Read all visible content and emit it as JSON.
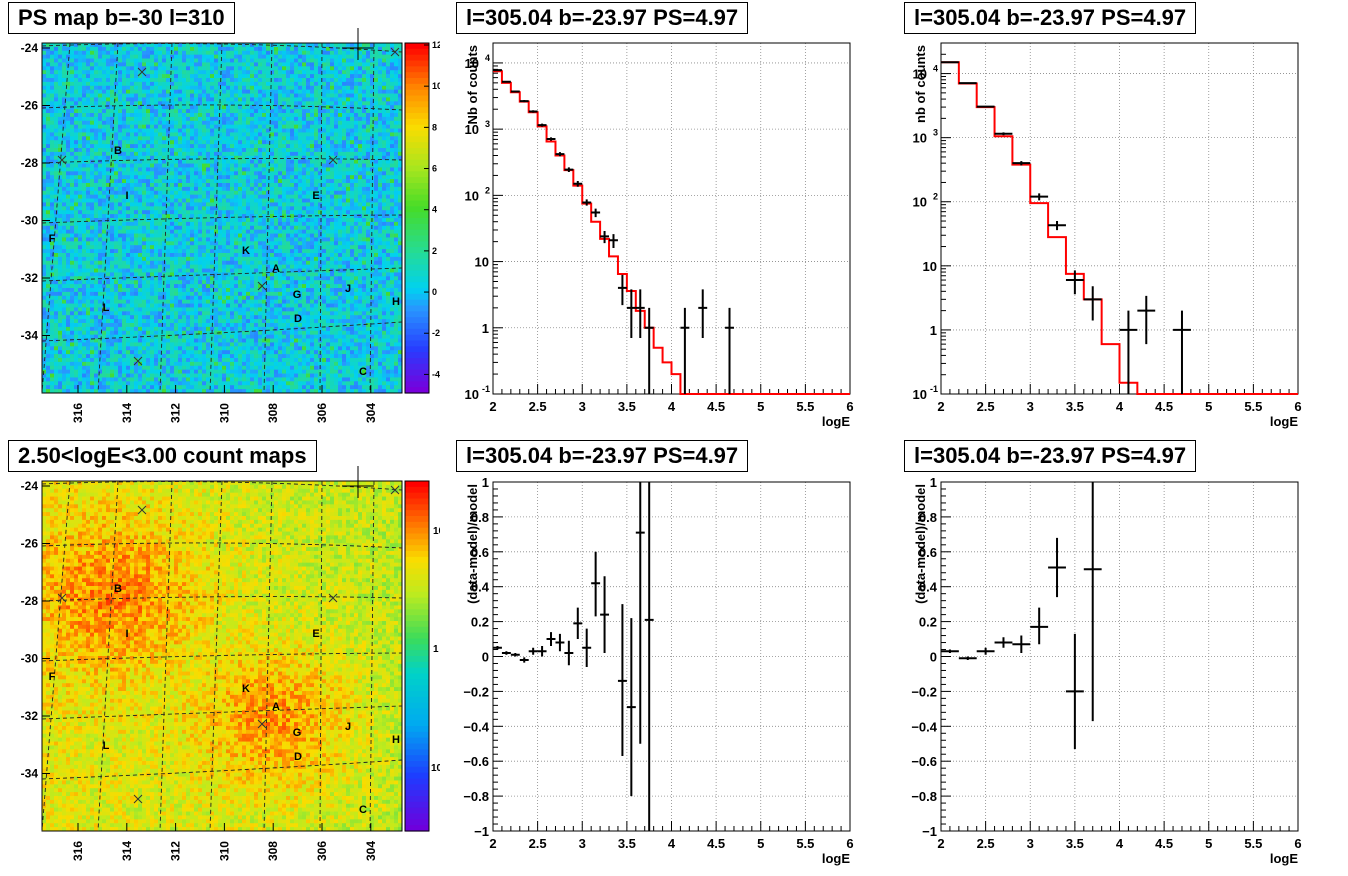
{
  "panels": {
    "map_ps": {
      "title": "PS map b=-30 l=310"
    },
    "map_counts": {
      "title": "2.50<logE<3.00 count maps"
    },
    "spec_a": {
      "title": "l=305.04 b=-23.97 PS=4.97"
    },
    "spec_b": {
      "title": "l=305.04 b=-23.97 PS=4.97"
    },
    "resid_a": {
      "title": "l=305.04 b=-23.97 PS=4.97"
    },
    "resid_b": {
      "title": "l=305.04 b=-23.97 PS=4.97"
    }
  },
  "map_axes": {
    "y_ticks": [
      "-24",
      "-26",
      "-28",
      "-30",
      "-32",
      "-34"
    ],
    "x_ticks": [
      "316",
      "314",
      "312",
      "310",
      "308",
      "306",
      "304"
    ]
  },
  "map_sources": [
    "B",
    "I",
    "E",
    "F",
    "K",
    "A",
    "G",
    "J",
    "H",
    "L",
    "D",
    "C"
  ],
  "colors": {
    "model_line": "#ff0000",
    "data": "#000000",
    "grid": "#000000"
  },
  "chart_data": [
    {
      "type": "heatmap",
      "title": "PS map b=-30 l=310",
      "xlabel": "",
      "ylabel": "",
      "x_ticks": [
        316,
        314,
        312,
        310,
        308,
        306,
        304
      ],
      "y_ticks": [
        -24,
        -26,
        -28,
        -30,
        -32,
        -34
      ],
      "colorbar": {
        "scale": "linear",
        "min": -5,
        "max": 12,
        "ticks": [
          12,
          10,
          8,
          6,
          4,
          2,
          0,
          -2,
          -4
        ]
      },
      "sources": [
        "B",
        "I",
        "E",
        "F",
        "K",
        "A",
        "G",
        "J",
        "H",
        "L",
        "D",
        "C"
      ]
    },
    {
      "type": "heatmap",
      "title": "2.50<logE<3.00 count maps",
      "xlabel": "",
      "ylabel": "",
      "x_ticks": [
        316,
        314,
        312,
        310,
        308,
        306,
        304
      ],
      "y_ticks": [
        -24,
        -26,
        -28,
        -30,
        -32,
        -34
      ],
      "colorbar": {
        "scale": "log",
        "min": 0.03,
        "max": 40,
        "tick_labels": [
          "10",
          "1",
          "10-1"
        ]
      },
      "sources": [
        "B",
        "I",
        "E",
        "F",
        "K",
        "A",
        "G",
        "J",
        "H",
        "L",
        "D",
        "C"
      ]
    },
    {
      "type": "line",
      "title": "l=305.04 b=-23.97 PS=4.97",
      "xlabel": "logE",
      "ylabel": "Nb of counts",
      "xlim": [
        2,
        6
      ],
      "ylim": [
        0.1,
        20000
      ],
      "yscale": "log",
      "x_ticks": [
        2,
        2.5,
        3,
        3.5,
        4,
        4.5,
        5,
        5.5,
        6
      ],
      "y_tick_labels": [
        "10^-1",
        "1",
        "10",
        "10^2",
        "10^3",
        "10^4"
      ],
      "grid": true,
      "series": [
        {
          "kind": "step",
          "color": "#ff0000",
          "edges": [
            2,
            2.1,
            2.2,
            2.3,
            2.4,
            2.5,
            2.6,
            2.7,
            2.8,
            2.9,
            3.0,
            3.1,
            3.2,
            3.3,
            3.4,
            3.5,
            3.6,
            3.7,
            3.8,
            3.9,
            4.0,
            4.1,
            4.2,
            6.0
          ],
          "values": [
            7500,
            5000,
            3600,
            2600,
            1800,
            1100,
            650,
            400,
            240,
            140,
            75,
            40,
            22,
            12,
            6.5,
            3.6,
            1.8,
            1.0,
            0.5,
            0.3,
            0.2,
            0.1,
            0.1
          ]
        },
        {
          "kind": "errorbar",
          "color": "#000000",
          "points": [
            {
              "x": 2.05,
              "y": 7800,
              "dx": 0.05,
              "lo": 7600,
              "hi": 8000
            },
            {
              "x": 2.15,
              "y": 5200,
              "dx": 0.05,
              "lo": 5050,
              "hi": 5350
            },
            {
              "x": 2.25,
              "y": 3700,
              "dx": 0.05,
              "lo": 3580,
              "hi": 3820
            },
            {
              "x": 2.35,
              "y": 2650,
              "dx": 0.05,
              "lo": 2550,
              "hi": 2750
            },
            {
              "x": 2.45,
              "y": 1850,
              "dx": 0.05,
              "lo": 1770,
              "hi": 1930
            },
            {
              "x": 2.55,
              "y": 1150,
              "dx": 0.05,
              "lo": 1090,
              "hi": 1210
            },
            {
              "x": 2.65,
              "y": 710,
              "dx": 0.05,
              "lo": 670,
              "hi": 750
            },
            {
              "x": 2.75,
              "y": 420,
              "dx": 0.05,
              "lo": 390,
              "hi": 450
            },
            {
              "x": 2.85,
              "y": 245,
              "dx": 0.05,
              "lo": 225,
              "hi": 265
            },
            {
              "x": 2.95,
              "y": 150,
              "dx": 0.05,
              "lo": 135,
              "hi": 165
            },
            {
              "x": 3.05,
              "y": 78,
              "dx": 0.05,
              "lo": 70,
              "hi": 87
            },
            {
              "x": 3.15,
              "y": 55,
              "dx": 0.05,
              "lo": 47,
              "hi": 63
            },
            {
              "x": 3.25,
              "y": 24,
              "dx": 0.05,
              "lo": 19,
              "hi": 29
            },
            {
              "x": 3.35,
              "y": 21,
              "dx": 0.05,
              "lo": 16,
              "hi": 26
            },
            {
              "x": 3.45,
              "y": 4,
              "dx": 0.05,
              "lo": 2.2,
              "hi": 6.3
            },
            {
              "x": 3.55,
              "y": 2,
              "dx": 0.05,
              "lo": 0.7,
              "hi": 3.8
            },
            {
              "x": 3.65,
              "y": 2,
              "dx": 0.05,
              "lo": 0.7,
              "hi": 3.8
            },
            {
              "x": 3.75,
              "y": 1,
              "dx": 0.05,
              "lo": 0.1,
              "hi": 2.0
            },
            {
              "x": 4.15,
              "y": 1,
              "dx": 0.05,
              "lo": 0.1,
              "hi": 2.0
            },
            {
              "x": 4.35,
              "y": 2,
              "dx": 0.05,
              "lo": 0.7,
              "hi": 3.8
            },
            {
              "x": 4.65,
              "y": 1,
              "dx": 0.05,
              "lo": 0.1,
              "hi": 2.0
            }
          ]
        }
      ]
    },
    {
      "type": "line",
      "title": "l=305.04 b=-23.97 PS=4.97",
      "xlabel": "logE",
      "ylabel": "nb of counts",
      "xlim": [
        2,
        6
      ],
      "ylim": [
        0.1,
        30000
      ],
      "yscale": "log",
      "x_ticks": [
        2,
        2.5,
        3,
        3.5,
        4,
        4.5,
        5,
        5.5,
        6
      ],
      "y_tick_labels": [
        "10^-1",
        "1",
        "10",
        "10^2",
        "10^3",
        "10^4"
      ],
      "grid": true,
      "series": [
        {
          "kind": "step",
          "color": "#ff0000",
          "edges": [
            2.0,
            2.2,
            2.4,
            2.6,
            2.8,
            3.0,
            3.2,
            3.4,
            3.6,
            3.8,
            4.0,
            4.2,
            6.0
          ],
          "values": [
            15000,
            7000,
            3000,
            1050,
            380,
            95,
            28,
            7.5,
            3.0,
            0.6,
            0.15,
            0.1
          ]
        },
        {
          "kind": "errorbar",
          "color": "#000000",
          "points": [
            {
              "x": 2.1,
              "y": 15000,
              "dx": 0.1,
              "lo": 14700,
              "hi": 15300
            },
            {
              "x": 2.3,
              "y": 7100,
              "dx": 0.1,
              "lo": 6900,
              "hi": 7300
            },
            {
              "x": 2.5,
              "y": 3050,
              "dx": 0.1,
              "lo": 2950,
              "hi": 3150
            },
            {
              "x": 2.7,
              "y": 1150,
              "dx": 0.1,
              "lo": 1090,
              "hi": 1210
            },
            {
              "x": 2.9,
              "y": 400,
              "dx": 0.1,
              "lo": 370,
              "hi": 430
            },
            {
              "x": 3.1,
              "y": 120,
              "dx": 0.1,
              "lo": 105,
              "hi": 135
            },
            {
              "x": 3.3,
              "y": 43,
              "dx": 0.1,
              "lo": 36,
              "hi": 50
            },
            {
              "x": 3.5,
              "y": 6,
              "dx": 0.1,
              "lo": 3.6,
              "hi": 8.5
            },
            {
              "x": 3.7,
              "y": 3,
              "dx": 0.1,
              "lo": 1.4,
              "hi": 4.8
            },
            {
              "x": 4.1,
              "y": 1,
              "dx": 0.1,
              "lo": 0.1,
              "hi": 2.0
            },
            {
              "x": 4.3,
              "y": 2,
              "dx": 0.1,
              "lo": 0.6,
              "hi": 3.4
            },
            {
              "x": 4.7,
              "y": 1,
              "dx": 0.1,
              "lo": 0.1,
              "hi": 2.0
            }
          ]
        }
      ]
    },
    {
      "type": "scatter",
      "title": "l=305.04 b=-23.97 PS=4.97",
      "xlabel": "logE",
      "ylabel": "(data-model)/model",
      "xlim": [
        2,
        6
      ],
      "ylim": [
        -1,
        1
      ],
      "x_ticks": [
        2,
        2.5,
        3,
        3.5,
        4,
        4.5,
        5,
        5.5,
        6
      ],
      "y_ticks": [
        1,
        0.8,
        0.6,
        0.4,
        0.2,
        0,
        -0.2,
        -0.4,
        -0.6,
        -0.8,
        -1
      ],
      "grid": true,
      "series": [
        {
          "kind": "errorbar",
          "color": "#000000",
          "points": [
            {
              "x": 2.05,
              "y": 0.05,
              "dx": 0.05,
              "lo": 0.04,
              "hi": 0.06
            },
            {
              "x": 2.15,
              "y": 0.02,
              "dx": 0.05,
              "lo": 0.01,
              "hi": 0.03
            },
            {
              "x": 2.25,
              "y": 0.01,
              "dx": 0.05,
              "lo": 0.0,
              "hi": 0.02
            },
            {
              "x": 2.35,
              "y": -0.02,
              "dx": 0.05,
              "lo": -0.035,
              "hi": -0.005
            },
            {
              "x": 2.45,
              "y": 0.03,
              "dx": 0.05,
              "lo": 0.01,
              "hi": 0.05
            },
            {
              "x": 2.55,
              "y": 0.03,
              "dx": 0.05,
              "lo": 0.0,
              "hi": 0.06
            },
            {
              "x": 2.65,
              "y": 0.1,
              "dx": 0.05,
              "lo": 0.06,
              "hi": 0.14
            },
            {
              "x": 2.75,
              "y": 0.08,
              "dx": 0.05,
              "lo": 0.03,
              "hi": 0.13
            },
            {
              "x": 2.85,
              "y": 0.02,
              "dx": 0.05,
              "lo": -0.05,
              "hi": 0.09
            },
            {
              "x": 2.95,
              "y": 0.19,
              "dx": 0.05,
              "lo": 0.1,
              "hi": 0.28
            },
            {
              "x": 3.05,
              "y": 0.05,
              "dx": 0.05,
              "lo": -0.06,
              "hi": 0.16
            },
            {
              "x": 3.15,
              "y": 0.42,
              "dx": 0.05,
              "lo": 0.23,
              "hi": 0.6
            },
            {
              "x": 3.25,
              "y": 0.24,
              "dx": 0.05,
              "lo": 0.02,
              "hi": 0.46
            },
            {
              "x": 3.45,
              "y": -0.14,
              "dx": 0.05,
              "lo": -0.57,
              "hi": 0.3
            },
            {
              "x": 3.55,
              "y": -0.29,
              "dx": 0.05,
              "lo": -0.8,
              "hi": 0.22
            },
            {
              "x": 3.65,
              "y": 0.71,
              "dx": 0.05,
              "lo": -0.5,
              "hi": 1.0
            },
            {
              "x": 3.75,
              "y": 0.21,
              "dx": 0.05,
              "lo": -1.0,
              "hi": 1.0
            }
          ]
        }
      ]
    },
    {
      "type": "scatter",
      "title": "l=305.04 b=-23.97 PS=4.97",
      "xlabel": "logE",
      "ylabel": "(data-model)/model",
      "xlim": [
        2,
        6
      ],
      "ylim": [
        -1,
        1
      ],
      "x_ticks": [
        2,
        2.5,
        3,
        3.5,
        4,
        4.5,
        5,
        5.5,
        6
      ],
      "y_ticks": [
        1,
        0.8,
        0.6,
        0.4,
        0.2,
        0,
        -0.2,
        -0.4,
        -0.6,
        -0.8,
        -1
      ],
      "grid": true,
      "series": [
        {
          "kind": "errorbar",
          "color": "#000000",
          "points": [
            {
              "x": 2.1,
              "y": 0.03,
              "dx": 0.1,
              "lo": 0.02,
              "hi": 0.04
            },
            {
              "x": 2.3,
              "y": -0.01,
              "dx": 0.1,
              "lo": -0.02,
              "hi": 0.0
            },
            {
              "x": 2.5,
              "y": 0.03,
              "dx": 0.1,
              "lo": 0.01,
              "hi": 0.05
            },
            {
              "x": 2.7,
              "y": 0.08,
              "dx": 0.1,
              "lo": 0.05,
              "hi": 0.11
            },
            {
              "x": 2.9,
              "y": 0.07,
              "dx": 0.1,
              "lo": 0.02,
              "hi": 0.12
            },
            {
              "x": 3.1,
              "y": 0.17,
              "dx": 0.1,
              "lo": 0.07,
              "hi": 0.28
            },
            {
              "x": 3.3,
              "y": 0.51,
              "dx": 0.1,
              "lo": 0.34,
              "hi": 0.68
            },
            {
              "x": 3.5,
              "y": -0.2,
              "dx": 0.1,
              "lo": -0.53,
              "hi": 0.13
            },
            {
              "x": 3.7,
              "y": 0.5,
              "dx": 0.1,
              "lo": -0.37,
              "hi": 1.0
            }
          ]
        }
      ]
    }
  ]
}
